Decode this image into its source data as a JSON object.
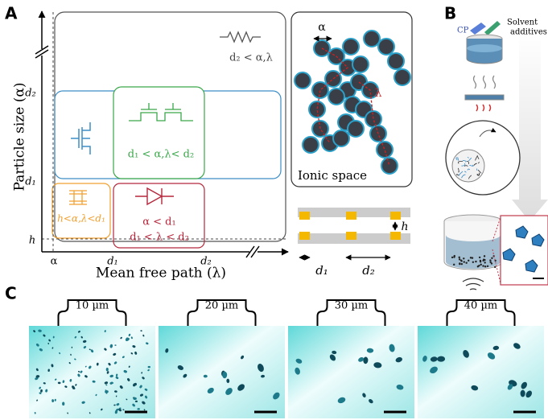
{
  "panel_labels": [
    "A",
    "B",
    "C"
  ],
  "panel_a": {
    "y_axis_label": "Particle size (α)",
    "x_axis_label": "Mean free path (λ)",
    "y_ticks": [
      "d₂",
      "d₁",
      "h"
    ],
    "x_ticks": [
      "α",
      "d₁",
      "d₂"
    ],
    "regions": {
      "top": [
        "d₂ < α,λ"
      ],
      "green": [
        "d₁ < α,λ< d₂"
      ],
      "orange": [
        "h<α,λ<d₁"
      ],
      "red": [
        "α < d₁",
        "d₁ < λ < d₂"
      ]
    },
    "ionic_space": {
      "alpha": "α",
      "lambda": "λ",
      "label": "Ionic space"
    },
    "channel": {
      "h": "h",
      "d1": "d₁",
      "d2": "d₂"
    }
  },
  "panel_b": {
    "cp": "CP",
    "solvent": [
      "Solvent",
      "additives"
    ]
  },
  "panel_c": {
    "images": [
      "10 µm",
      "20 µm",
      "30 µm",
      "40 µm"
    ]
  }
}
